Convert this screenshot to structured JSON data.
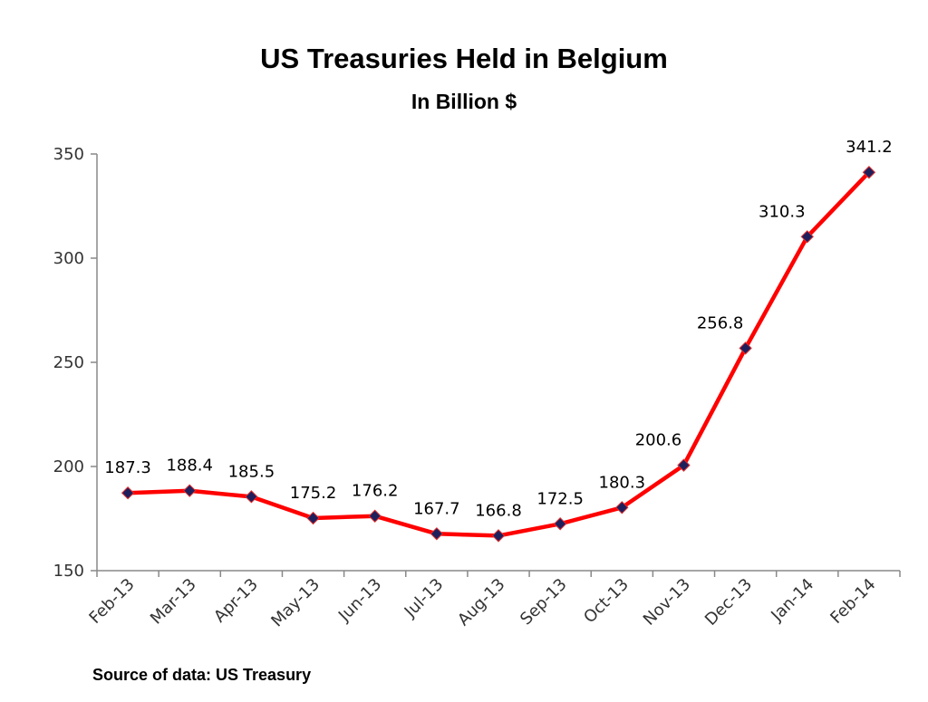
{
  "chart_data": {
    "type": "line",
    "title": "US Treasuries Held in Belgium",
    "subtitle": "In Billion $",
    "source": "Source of data: US Treasury",
    "categories": [
      "Feb-13",
      "Mar-13",
      "Apr-13",
      "May-13",
      "Jun-13",
      "Jul-13",
      "Aug-13",
      "Sep-13",
      "Oct-13",
      "Nov-13",
      "Dec-13",
      "Jan-14",
      "Feb-14"
    ],
    "values": [
      187.3,
      188.4,
      185.5,
      175.2,
      176.2,
      167.7,
      166.8,
      172.5,
      180.3,
      200.6,
      256.8,
      310.3,
      341.2
    ],
    "data_labels": [
      "187.3",
      "188.4",
      "185.5",
      "175.2",
      "176.2",
      "167.7",
      "166.8",
      "172.5",
      "180.3",
      "200.6",
      "256.8",
      "310.3",
      "341.2"
    ],
    "ylim": [
      150,
      350
    ],
    "yticks": [
      150,
      200,
      250,
      300,
      350
    ],
    "ytick_labels": [
      "150",
      "200",
      "250",
      "300",
      "350"
    ],
    "grid": false,
    "legend": "none",
    "line_color": "#ff0000",
    "marker_color": "#1f1f5c"
  }
}
